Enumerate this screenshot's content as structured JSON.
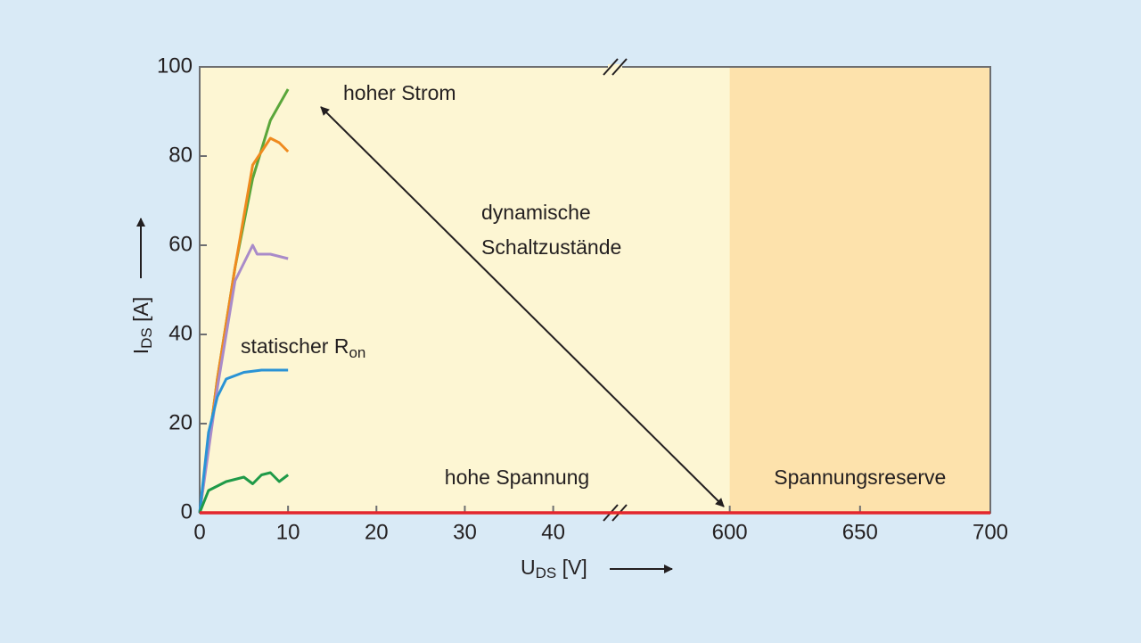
{
  "chart_data": {
    "type": "line",
    "x_label": {
      "main": "U",
      "sub": "DS",
      "rest": " [V]"
    },
    "y_label": {
      "main": "I",
      "sub": "DS",
      "rest": " [A]"
    },
    "x_segments": [
      [
        0,
        47
      ],
      [
        556,
        700
      ]
    ],
    "xlim": [
      0,
      700
    ],
    "ylim": [
      0,
      100
    ],
    "xticks": [
      0,
      10,
      20,
      30,
      40,
      600,
      650,
      700
    ],
    "yticks": [
      0,
      20,
      40,
      60,
      80,
      100
    ],
    "plot_background": "#fdf6d3",
    "shaded_region": {
      "range": [
        600,
        700
      ],
      "color": "#fde2ac",
      "label": "Spannungsreserve"
    },
    "annotations": {
      "high_current": "hoher Strom",
      "dynamic": [
        "dynamische",
        "Schaltzustände"
      ],
      "static": {
        "text": "statischer R",
        "sub": "on"
      },
      "high_voltage": "hohe Spannung"
    },
    "series": [
      {
        "color": "#e3262c",
        "x": [
          0,
          700
        ],
        "values": [
          0,
          0
        ]
      },
      {
        "color": "#5aa63a",
        "x": [
          0,
          2,
          4,
          6,
          8,
          10
        ],
        "values": [
          0,
          30,
          55,
          75,
          88,
          95
        ]
      },
      {
        "color": "#ef8a1e",
        "x": [
          0,
          2,
          4,
          6,
          8,
          9,
          10
        ],
        "values": [
          0,
          30,
          55,
          78,
          84,
          83,
          81
        ]
      },
      {
        "color": "#a98bc9",
        "x": [
          0,
          2,
          4,
          6,
          6.5,
          8,
          10
        ],
        "values": [
          0,
          28,
          52,
          60,
          58,
          58,
          57
        ]
      },
      {
        "color": "#2a93d5",
        "x": [
          0,
          1,
          2,
          3,
          5,
          7,
          10
        ],
        "values": [
          0,
          18,
          26,
          30,
          31.5,
          32,
          32
        ]
      },
      {
        "color": "#1f9a48",
        "x": [
          0,
          1,
          3,
          5,
          6,
          7,
          8,
          9,
          10
        ],
        "values": [
          0,
          5,
          7,
          8,
          6.5,
          8.5,
          9,
          7,
          8.5
        ]
      }
    ]
  }
}
